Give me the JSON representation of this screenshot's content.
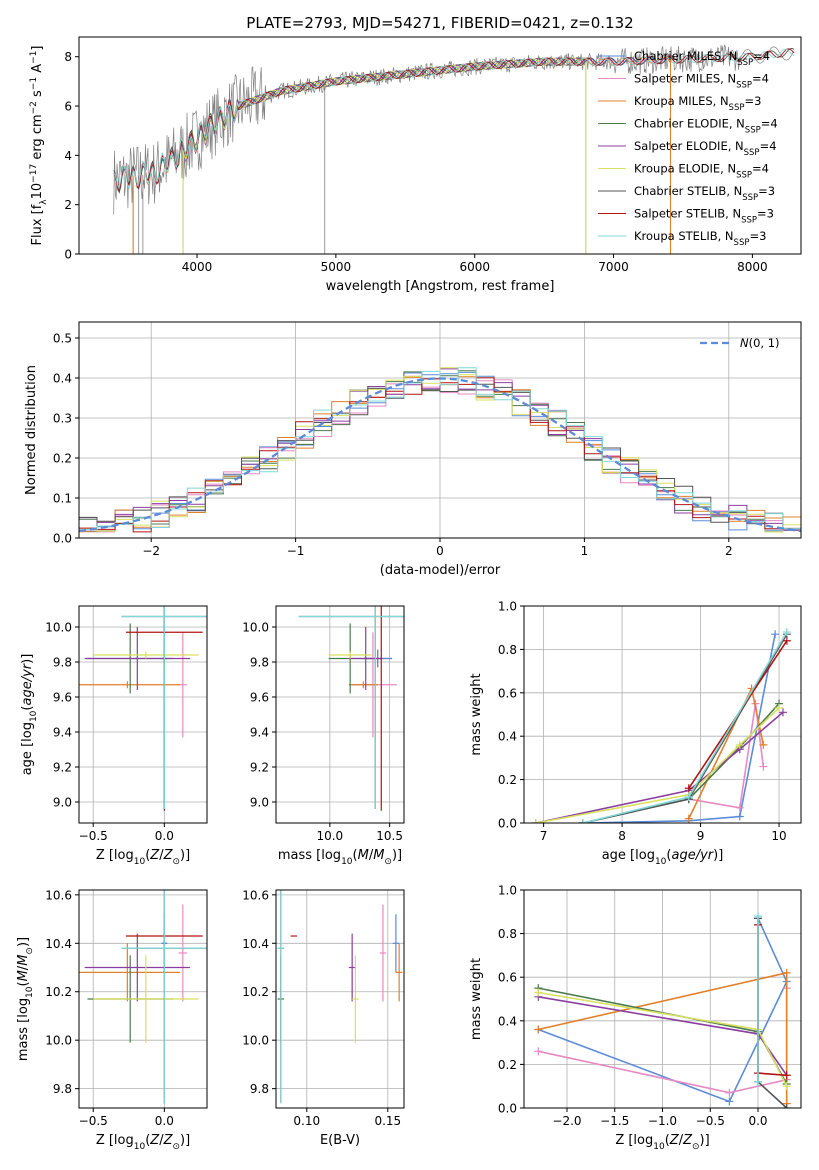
{
  "title": "PLATE=2793, MJD=54271, FIBERID=0421, z=0.132",
  "colors": {
    "Chabrier MILES": "#5b8bd9",
    "Salpeter MILES": "#e78ac3",
    "Kroupa MILES": "#e0802a",
    "Chabrier ELODIE": "#4c7a4c",
    "Salpeter ELODIE": "#8a3fa0",
    "Kroupa ELODIE": "#d8e060",
    "Chabrier STELIB": "#555555",
    "Salpeter STELIB": "#b01515",
    "Kroupa STELIB": "#80d8d8",
    "data": "#808080",
    "normal": "#5b8bd9"
  },
  "chart_data": [
    {
      "id": "spectrum",
      "type": "line",
      "xlabel": "wavelength [Angstrom, rest frame]",
      "ylabel": "Flux [f",
      "xlim": [
        3150,
        8350
      ],
      "ylim": [
        0,
        8.8
      ],
      "xticks": [
        "4000",
        "5000",
        "6000",
        "7000",
        "8000"
      ],
      "yticks": [
        "0",
        "2",
        "4",
        "6",
        "8"
      ],
      "legend_position": "right",
      "legend": [
        {
          "model": "Chabrier MILES",
          "nssp": "4"
        },
        {
          "model": "Salpeter MILES",
          "nssp": "4"
        },
        {
          "model": "Kroupa MILES",
          "nssp": "3"
        },
        {
          "model": "Chabrier ELODIE",
          "nssp": "4"
        },
        {
          "model": "Salpeter ELODIE",
          "nssp": "4"
        },
        {
          "model": "Kroupa ELODIE",
          "nssp": "4"
        },
        {
          "model": "Chabrier STELIB",
          "nssp": "3"
        },
        {
          "model": "Salpeter STELIB",
          "nssp": "3"
        },
        {
          "model": "Kroupa STELIB",
          "nssp": "3"
        }
      ],
      "continuum": {
        "x": [
          3400,
          3700,
          3900,
          4100,
          4300,
          4600,
          5000,
          5500,
          6000,
          6500,
          7000,
          7500,
          8000,
          8300
        ],
        "y": [
          3.0,
          3.3,
          4.2,
          5.2,
          6.0,
          6.6,
          7.0,
          7.3,
          7.6,
          7.8,
          7.8,
          7.9,
          8.0,
          8.2
        ]
      }
    },
    {
      "id": "residuals",
      "type": "histogram",
      "xlabel": "(data-model)/error",
      "ylabel": "Normed distribution",
      "xlim": [
        -2.5,
        2.5
      ],
      "ylim": [
        0,
        0.54
      ],
      "xticks": [
        "−2",
        "−1",
        "0",
        "1",
        "2"
      ],
      "yticks": [
        "0.0",
        "0.1",
        "0.2",
        "0.3",
        "0.4",
        "0.5"
      ],
      "legend_position": "top-right",
      "normal_legend": "(0, 1)",
      "normal_legend_symbol": "N",
      "hist_bins": [
        -2.5,
        2.5,
        40
      ]
    },
    {
      "id": "age-vs-Z",
      "type": "errorbar",
      "xlabel": "Z [log",
      "ylabel": "age  [log",
      "xlim": [
        -0.6,
        0.3
      ],
      "ylim": [
        8.88,
        10.12
      ],
      "xticks": [
        "−0.5",
        "0.0"
      ],
      "yticks": [
        "9.0",
        "9.2",
        "9.4",
        "9.6",
        "9.8",
        "10.0"
      ]
    },
    {
      "id": "age-vs-mass",
      "type": "errorbar",
      "xlabel": "mass [log",
      "ylim": [
        8.88,
        10.12
      ],
      "xlim": [
        9.55,
        10.62
      ],
      "xticks": [
        "10.0",
        "10.5"
      ],
      "yticks": [
        "9.0",
        "9.2",
        "9.4",
        "9.6",
        "9.8",
        "10.0"
      ]
    },
    {
      "id": "massweight-vs-age",
      "type": "line",
      "xlabel": "age  [log",
      "ylabel": "mass weight",
      "xlim": [
        6.75,
        10.28
      ],
      "ylim": [
        0,
        1
      ],
      "xticks": [
        "7",
        "8",
        "9",
        "10"
      ],
      "yticks": [
        "0.0",
        "0.2",
        "0.4",
        "0.6",
        "0.8",
        "1.0"
      ]
    },
    {
      "id": "mass-vs-Z",
      "type": "errorbar",
      "xlabel": "Z [log",
      "ylabel": "mass [log",
      "xlim": [
        -0.6,
        0.3
      ],
      "ylim": [
        9.72,
        10.62
      ],
      "xticks": [
        "−0.5",
        "0.0"
      ],
      "yticks": [
        "9.8",
        "10.0",
        "10.2",
        "10.4",
        "10.6"
      ]
    },
    {
      "id": "mass-vs-EBV",
      "type": "errorbar",
      "xlabel": "E(B-V)",
      "xlim": [
        0.081,
        0.16
      ],
      "ylim": [
        9.72,
        10.62
      ],
      "xticks": [
        "0.10",
        "0.15"
      ],
      "yticks": [
        "9.8",
        "10.0",
        "10.2",
        "10.4",
        "10.6"
      ]
    },
    {
      "id": "massweight-vs-Z",
      "type": "line",
      "xlabel": "Z [log",
      "ylabel": "mass weight",
      "xlim": [
        -2.45,
        0.45
      ],
      "ylim": [
        0,
        1
      ],
      "xticks": [
        "−2.0",
        "−1.5",
        "−1.0",
        "−0.5",
        "0.0"
      ],
      "yticks": [
        "0.0",
        "0.2",
        "0.4",
        "0.6",
        "0.8",
        "1.0"
      ]
    }
  ],
  "models": [
    {
      "name": "Chabrier MILES",
      "Z": [
        0.0,
        0.0
      ],
      "dZ": [
        0.02,
        0.02
      ],
      "age": [
        9.82,
        9.82
      ],
      "dage": [
        0.05,
        0.05
      ],
      "mass": [
        10.4,
        10.4
      ],
      "dmass": [
        0.12,
        0.12
      ],
      "ebv": 0.155,
      "debv": 0.002,
      "mw_age": [
        7.5,
        8.85,
        9.5,
        9.95
      ],
      "mw_w": [
        0.0,
        0.01,
        0.03,
        0.87
      ],
      "mw_Z": [
        -2.3,
        -0.3,
        0.3,
        0.0
      ],
      "mw_Zw": [
        0.36,
        0.03,
        0.58,
        0.87
      ]
    },
    {
      "name": "Salpeter MILES",
      "Z": [
        0.13
      ],
      "dZ": [
        0.03
      ],
      "age": [
        9.67
      ],
      "dage": [
        0.3
      ],
      "mass": [
        10.36
      ],
      "dmass": [
        0.2
      ],
      "ebv": 0.147,
      "debv": 0.002,
      "mw_age": [
        8.85,
        9.5,
        9.7,
        9.8
      ],
      "mw_w": [
        0.11,
        0.07,
        0.55,
        0.26
      ],
      "mw_Z": [
        -2.3,
        -0.3,
        0.3,
        0.3
      ],
      "mw_Zw": [
        0.26,
        0.07,
        0.13,
        0.55
      ]
    },
    {
      "name": "Kroupa MILES",
      "Z": [
        -0.26
      ],
      "dZ": [
        0.37
      ],
      "age": [
        9.67
      ],
      "dage": [
        0.02
      ],
      "mass": [
        10.28
      ],
      "dmass": [
        0.12
      ],
      "ebv": 0.157,
      "debv": 0.002,
      "mw_age": [
        8.85,
        9.65,
        9.8
      ],
      "mw_w": [
        0.02,
        0.62,
        0.36
      ],
      "mw_Z": [
        -2.3,
        0.3,
        0.3
      ],
      "mw_Zw": [
        0.36,
        0.62,
        0.02
      ]
    },
    {
      "name": "Chabrier ELODIE",
      "Z": [
        -0.24
      ],
      "dZ": [
        0.3
      ],
      "age": [
        9.82
      ],
      "dage": [
        0.2
      ],
      "mass": [
        10.17
      ],
      "dmass": [
        0.18
      ],
      "ebv": 0.084,
      "debv": 0.002,
      "mw_age": [
        7.5,
        8.85,
        9.5,
        10.0
      ],
      "mw_w": [
        0.0,
        0.11,
        0.35,
        0.55
      ],
      "mw_Z": [
        -2.3,
        0.0,
        0.3
      ],
      "mw_Zw": [
        0.55,
        0.35,
        0.11
      ]
    },
    {
      "name": "Salpeter ELODIE",
      "Z": [
        -0.19
      ],
      "dZ": [
        0.37
      ],
      "age": [
        9.82
      ],
      "dage": [
        0.18
      ],
      "mass": [
        10.3
      ],
      "dmass": [
        0.14
      ],
      "ebv": 0.128,
      "debv": 0.002,
      "mw_age": [
        6.9,
        8.85,
        9.5,
        10.05
      ],
      "mw_w": [
        0.0,
        0.15,
        0.34,
        0.51
      ],
      "mw_Z": [
        -2.3,
        0.0,
        0.3
      ],
      "mw_Zw": [
        0.51,
        0.34,
        0.15
      ]
    },
    {
      "name": "Kroupa ELODIE",
      "Z": [
        -0.13
      ],
      "dZ": [
        0.37
      ],
      "age": [
        9.84
      ],
      "dage": [
        0.02
      ],
      "mass": [
        10.17
      ],
      "dmass": [
        0.18
      ],
      "ebv": 0.13,
      "debv": 0.002,
      "mw_age": [
        6.9,
        8.85,
        9.5,
        10.0
      ],
      "mw_w": [
        0.0,
        0.13,
        0.36,
        0.53
      ],
      "mw_Z": [
        -2.3,
        0.0,
        0.3
      ],
      "mw_Zw": [
        0.53,
        0.36,
        0.1
      ]
    },
    {
      "name": "Chabrier STELIB",
      "Z": [
        0.0
      ],
      "dZ": [
        0.3
      ],
      "age": [
        10.06
      ],
      "dage": [
        1.1
      ],
      "mass": [
        10.38
      ],
      "dmass": [
        0.64
      ],
      "ebv": 0.084,
      "debv": 0.002,
      "mw_age": [
        7.5,
        8.85,
        10.1
      ],
      "mw_w": [
        0.0,
        0.11,
        0.87
      ],
      "mw_Z": [
        0.0,
        0.0,
        0.3
      ],
      "mw_Zw": [
        0.87,
        0.12,
        0.0
      ]
    },
    {
      "name": "Salpeter STELIB",
      "Z": [
        0.0
      ],
      "dZ": [
        0.27
      ],
      "age": [
        9.97
      ],
      "dage": [
        1.02
      ],
      "mass": [
        10.43
      ],
      "dmass": [
        0.0
      ],
      "ebv": 0.092,
      "debv": 0.002,
      "mw_age": [
        8.85,
        10.1
      ],
      "mw_w": [
        0.16,
        0.84
      ],
      "mw_Z": [
        0.0,
        0.0,
        0.3
      ],
      "mw_Zw": [
        0.84,
        0.16,
        0.15
      ]
    },
    {
      "name": "Kroupa STELIB",
      "Z": [
        0.0
      ],
      "dZ": [
        0.3
      ],
      "age": [
        10.06
      ],
      "dage": [
        1.1
      ],
      "mass": [
        10.38
      ],
      "dmass": [
        0.64
      ],
      "ebv": 0.084,
      "debv": 0.002,
      "mw_age": [
        7.5,
        8.85,
        10.1
      ],
      "mw_w": [
        0.0,
        0.12,
        0.88
      ],
      "mw_Z": [
        0.0,
        0.0
      ],
      "mw_Zw": [
        0.88,
        0.12
      ]
    }
  ]
}
